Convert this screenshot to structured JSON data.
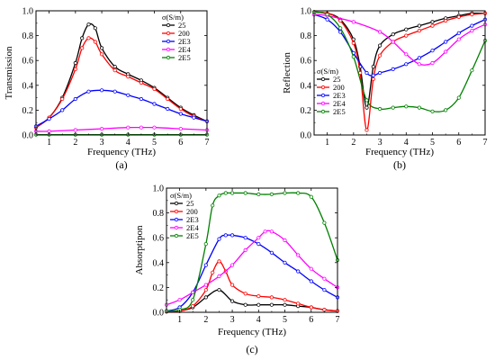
{
  "chart_data": [
    {
      "type": "line",
      "panel_label": "(a)",
      "xlabel": "Frequency (THz)",
      "ylabel": "Transmission",
      "xlim": [
        0.5,
        7
      ],
      "ylim": [
        0,
        1.0
      ],
      "xticks": [
        "1",
        "2",
        "3",
        "4",
        "5",
        "6",
        "7"
      ],
      "yticks": [
        "0.0",
        "0.2",
        "0.4",
        "0.6",
        "0.8",
        "1.0"
      ],
      "legend_title": "σ(S/m)",
      "legend_position": "top-right",
      "series": [
        {
          "name": "25",
          "color": "#000000",
          "x": [
            0.5,
            1,
            1.5,
            2,
            2.25,
            2.5,
            2.75,
            3,
            3.5,
            4,
            4.5,
            5,
            5.5,
            6,
            6.5,
            7
          ],
          "y": [
            0.06,
            0.14,
            0.3,
            0.58,
            0.78,
            0.89,
            0.86,
            0.7,
            0.55,
            0.49,
            0.44,
            0.38,
            0.3,
            0.22,
            0.16,
            0.11
          ]
        },
        {
          "name": "200",
          "color": "#ff0000",
          "x": [
            0.5,
            1,
            1.5,
            2,
            2.25,
            2.5,
            2.75,
            3,
            3.5,
            4,
            4.5,
            5,
            5.5,
            6,
            6.5,
            7
          ],
          "y": [
            0.06,
            0.14,
            0.29,
            0.53,
            0.7,
            0.78,
            0.75,
            0.65,
            0.52,
            0.47,
            0.42,
            0.37,
            0.29,
            0.21,
            0.15,
            0.11
          ]
        },
        {
          "name": "2E3",
          "color": "#0000ff",
          "x": [
            0.5,
            1,
            1.5,
            2,
            2.5,
            3,
            3.5,
            4,
            4.5,
            5,
            5.5,
            6,
            6.5,
            7
          ],
          "y": [
            0.07,
            0.13,
            0.2,
            0.29,
            0.35,
            0.36,
            0.35,
            0.32,
            0.29,
            0.25,
            0.21,
            0.17,
            0.14,
            0.11
          ]
        },
        {
          "name": "2E4",
          "color": "#ff00ff",
          "x": [
            0.5,
            1,
            2,
            3,
            4,
            4.5,
            5,
            6,
            7
          ],
          "y": [
            0.03,
            0.03,
            0.04,
            0.05,
            0.06,
            0.06,
            0.06,
            0.05,
            0.04
          ]
        },
        {
          "name": "2E5",
          "color": "#008000",
          "x": [
            0.5,
            1,
            2,
            3,
            4,
            5,
            6,
            7
          ],
          "y": [
            0.003,
            0.003,
            0.003,
            0.003,
            0.003,
            0.003,
            0.003,
            0.003
          ]
        }
      ]
    },
    {
      "type": "line",
      "panel_label": "(b)",
      "xlabel": "Frequency (THz)",
      "ylabel": "Reflection",
      "xlim": [
        0.5,
        7
      ],
      "ylim": [
        0,
        1.0
      ],
      "xticks": [
        "1",
        "2",
        "3",
        "4",
        "5",
        "6",
        "7"
      ],
      "yticks": [
        "0.0",
        "0.2",
        "0.4",
        "0.6",
        "0.8",
        "1.0"
      ],
      "legend_title": "σ(S/m)",
      "legend_position": "center-left",
      "series": [
        {
          "name": "25",
          "color": "#000000",
          "x": [
            0.5,
            1,
            1.5,
            2,
            2.25,
            2.5,
            2.75,
            3,
            3.5,
            4,
            4.5,
            5,
            5.5,
            6,
            6.5,
            7
          ],
          "y": [
            0.99,
            0.98,
            0.93,
            0.77,
            0.55,
            0.22,
            0.55,
            0.72,
            0.81,
            0.85,
            0.88,
            0.91,
            0.94,
            0.96,
            0.98,
            0.98
          ]
        },
        {
          "name": "200",
          "color": "#ff0000",
          "x": [
            0.5,
            1,
            1.5,
            2,
            2.25,
            2.5,
            2.75,
            3,
            3.5,
            4,
            4.5,
            5,
            5.5,
            6,
            6.5,
            7
          ],
          "y": [
            0.99,
            0.98,
            0.92,
            0.74,
            0.5,
            0.04,
            0.45,
            0.64,
            0.75,
            0.8,
            0.84,
            0.88,
            0.92,
            0.95,
            0.97,
            0.98
          ]
        },
        {
          "name": "2E3",
          "color": "#0000ff",
          "x": [
            0.5,
            1,
            1.5,
            2,
            2.5,
            2.75,
            3,
            3.5,
            4,
            4.5,
            5,
            5.5,
            6,
            6.5,
            7
          ],
          "y": [
            0.97,
            0.93,
            0.83,
            0.66,
            0.5,
            0.48,
            0.5,
            0.53,
            0.57,
            0.62,
            0.68,
            0.75,
            0.82,
            0.88,
            0.93
          ]
        },
        {
          "name": "2E4",
          "color": "#ff00ff",
          "x": [
            0.5,
            1,
            2,
            3,
            3.5,
            4,
            4.5,
            5,
            5.5,
            6,
            6.5,
            7
          ],
          "y": [
            0.97,
            0.96,
            0.91,
            0.83,
            0.75,
            0.65,
            0.57,
            0.58,
            0.67,
            0.77,
            0.84,
            0.89
          ]
        },
        {
          "name": "2E5",
          "color": "#008000",
          "x": [
            0.5,
            1,
            1.5,
            2,
            2.5,
            3,
            3.5,
            4,
            4.5,
            5,
            5.5,
            6,
            6.5,
            7
          ],
          "y": [
            0.99,
            0.97,
            0.86,
            0.63,
            0.28,
            0.21,
            0.22,
            0.23,
            0.22,
            0.19,
            0.2,
            0.3,
            0.52,
            0.76
          ]
        }
      ]
    },
    {
      "type": "line",
      "panel_label": "(c)",
      "xlabel": "Frequency (THz)",
      "ylabel": "Absorptipon",
      "xlim": [
        0.5,
        7
      ],
      "ylim": [
        0,
        1.0
      ],
      "xticks": [
        "1",
        "2",
        "3",
        "4",
        "5",
        "6",
        "7"
      ],
      "yticks": [
        "0.0",
        "0.2",
        "0.4",
        "0.6",
        "0.8",
        "1.0"
      ],
      "legend_title": "σ(S/m)",
      "legend_position": "top-left",
      "series": [
        {
          "name": "25",
          "color": "#000000",
          "x": [
            0.5,
            1,
            1.5,
            2,
            2.5,
            3,
            3.5,
            4,
            4.5,
            5,
            5.5,
            6,
            6.5,
            7
          ],
          "y": [
            0.005,
            0.01,
            0.04,
            0.12,
            0.18,
            0.09,
            0.06,
            0.06,
            0.06,
            0.06,
            0.05,
            0.04,
            0.02,
            0.01
          ]
        },
        {
          "name": "200",
          "color": "#ff0000",
          "x": [
            0.5,
            1,
            1.5,
            2,
            2.25,
            2.5,
            2.75,
            3,
            3.5,
            4,
            4.5,
            5,
            5.5,
            6,
            6.5,
            7
          ],
          "y": [
            0.005,
            0.01,
            0.05,
            0.18,
            0.32,
            0.41,
            0.33,
            0.22,
            0.15,
            0.13,
            0.12,
            0.1,
            0.07,
            0.04,
            0.02,
            0.01
          ]
        },
        {
          "name": "2E3",
          "color": "#0000ff",
          "x": [
            0.5,
            1,
            1.5,
            2,
            2.5,
            2.75,
            3,
            3.5,
            4,
            4.5,
            5,
            5.5,
            6,
            6.5,
            7
          ],
          "y": [
            0.01,
            0.04,
            0.16,
            0.38,
            0.59,
            0.62,
            0.62,
            0.6,
            0.55,
            0.48,
            0.4,
            0.33,
            0.25,
            0.18,
            0.12
          ]
        },
        {
          "name": "2E4",
          "color": "#ff00ff",
          "x": [
            0.5,
            1,
            1.5,
            2,
            2.5,
            3,
            3.5,
            4,
            4.25,
            4.5,
            5,
            5.5,
            6,
            6.5,
            7
          ],
          "y": [
            0.06,
            0.1,
            0.16,
            0.22,
            0.29,
            0.38,
            0.5,
            0.6,
            0.65,
            0.65,
            0.58,
            0.46,
            0.35,
            0.27,
            0.2
          ]
        },
        {
          "name": "2E5",
          "color": "#008000",
          "x": [
            0.5,
            1,
            1.5,
            2,
            2.25,
            2.5,
            2.75,
            3,
            3.5,
            4,
            4.5,
            5,
            5.5,
            6,
            6.5,
            7
          ],
          "y": [
            0.01,
            0.02,
            0.1,
            0.55,
            0.86,
            0.94,
            0.96,
            0.96,
            0.96,
            0.95,
            0.95,
            0.96,
            0.96,
            0.93,
            0.72,
            0.42
          ]
        }
      ]
    }
  ]
}
